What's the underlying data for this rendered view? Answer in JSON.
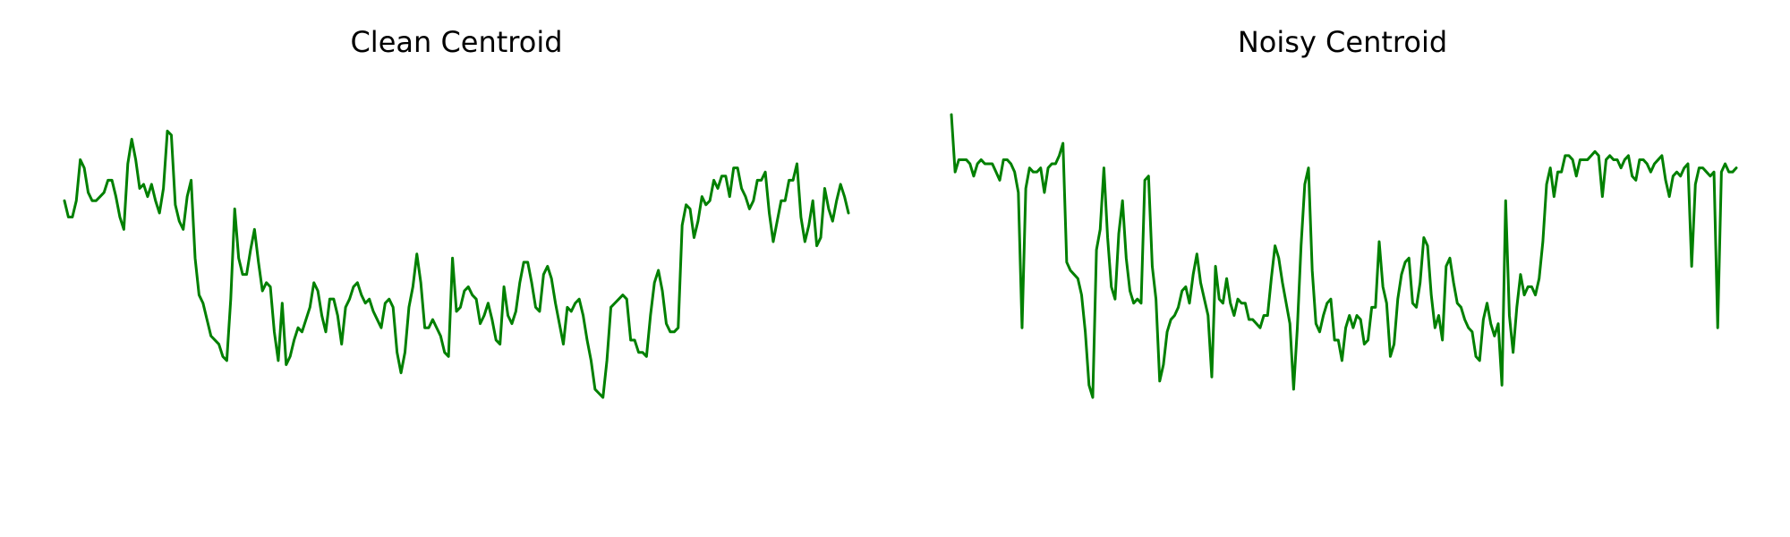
{
  "chart_data": [
    {
      "type": "line",
      "title": "Clean Centroid",
      "xlabel": "",
      "ylabel": "",
      "grid": false,
      "axes_visible": false,
      "color": "#008000",
      "ylim": [
        0,
        1
      ],
      "series": [
        {
          "values": [
            0.72,
            0.68,
            0.68,
            0.72,
            0.82,
            0.8,
            0.74,
            0.72,
            0.72,
            0.73,
            0.74,
            0.77,
            0.77,
            0.73,
            0.68,
            0.65,
            0.81,
            0.87,
            0.82,
            0.75,
            0.76,
            0.73,
            0.76,
            0.72,
            0.69,
            0.75,
            0.89,
            0.88,
            0.71,
            0.67,
            0.65,
            0.73,
            0.77,
            0.58,
            0.49,
            0.47,
            0.43,
            0.39,
            0.38,
            0.37,
            0.34,
            0.33,
            0.48,
            0.7,
            0.58,
            0.54,
            0.54,
            0.6,
            0.65,
            0.57,
            0.5,
            0.52,
            0.51,
            0.4,
            0.33,
            0.47,
            0.32,
            0.34,
            0.38,
            0.41,
            0.4,
            0.43,
            0.46,
            0.52,
            0.5,
            0.44,
            0.4,
            0.48,
            0.48,
            0.44,
            0.37,
            0.46,
            0.48,
            0.51,
            0.52,
            0.49,
            0.47,
            0.48,
            0.45,
            0.43,
            0.41,
            0.47,
            0.48,
            0.46,
            0.35,
            0.3,
            0.35,
            0.46,
            0.51,
            0.59,
            0.52,
            0.41,
            0.41,
            0.43,
            0.41,
            0.39,
            0.35,
            0.34,
            0.58,
            0.45,
            0.46,
            0.5,
            0.51,
            0.49,
            0.48,
            0.42,
            0.44,
            0.47,
            0.43,
            0.38,
            0.37,
            0.51,
            0.44,
            0.42,
            0.45,
            0.52,
            0.57,
            0.57,
            0.52,
            0.46,
            0.45,
            0.54,
            0.56,
            0.53,
            0.47,
            0.42,
            0.37,
            0.46,
            0.45,
            0.47,
            0.48,
            0.44,
            0.38,
            0.33,
            0.26,
            0.25,
            0.24,
            0.33,
            0.46,
            0.47,
            0.48,
            0.49,
            0.48,
            0.38,
            0.38,
            0.35,
            0.35,
            0.34,
            0.44,
            0.52,
            0.55,
            0.5,
            0.42,
            0.4,
            0.4,
            0.41,
            0.66,
            0.71,
            0.7,
            0.63,
            0.67,
            0.73,
            0.71,
            0.72,
            0.77,
            0.75,
            0.78,
            0.78,
            0.73,
            0.8,
            0.8,
            0.75,
            0.73,
            0.7,
            0.72,
            0.77,
            0.77,
            0.79,
            0.69,
            0.62,
            0.67,
            0.72,
            0.72,
            0.77,
            0.77,
            0.81,
            0.68,
            0.62,
            0.66,
            0.72,
            0.61,
            0.63,
            0.75,
            0.7,
            0.67,
            0.72,
            0.76,
            0.73,
            0.69
          ]
        }
      ]
    },
    {
      "type": "line",
      "title": "Noisy Centroid",
      "xlabel": "",
      "ylabel": "",
      "grid": false,
      "axes_visible": false,
      "color": "#008000",
      "ylim": [
        0,
        1
      ],
      "series": [
        {
          "values": [
            0.93,
            0.79,
            0.82,
            0.82,
            0.82,
            0.81,
            0.78,
            0.81,
            0.82,
            0.81,
            0.81,
            0.81,
            0.79,
            0.77,
            0.82,
            0.82,
            0.81,
            0.79,
            0.74,
            0.41,
            0.75,
            0.8,
            0.79,
            0.79,
            0.8,
            0.74,
            0.8,
            0.81,
            0.81,
            0.83,
            0.86,
            0.57,
            0.55,
            0.54,
            0.53,
            0.49,
            0.4,
            0.27,
            0.24,
            0.6,
            0.65,
            0.8,
            0.63,
            0.51,
            0.48,
            0.64,
            0.72,
            0.58,
            0.5,
            0.47,
            0.48,
            0.47,
            0.77,
            0.78,
            0.56,
            0.48,
            0.28,
            0.32,
            0.4,
            0.43,
            0.44,
            0.46,
            0.5,
            0.51,
            0.47,
            0.54,
            0.59,
            0.52,
            0.48,
            0.44,
            0.29,
            0.56,
            0.48,
            0.47,
            0.53,
            0.47,
            0.44,
            0.48,
            0.47,
            0.47,
            0.43,
            0.43,
            0.42,
            0.41,
            0.44,
            0.44,
            0.53,
            0.61,
            0.58,
            0.52,
            0.47,
            0.42,
            0.26,
            0.41,
            0.61,
            0.76,
            0.8,
            0.55,
            0.42,
            0.4,
            0.44,
            0.47,
            0.48,
            0.38,
            0.38,
            0.33,
            0.41,
            0.44,
            0.41,
            0.44,
            0.43,
            0.37,
            0.38,
            0.46,
            0.46,
            0.62,
            0.51,
            0.47,
            0.34,
            0.37,
            0.48,
            0.54,
            0.57,
            0.58,
            0.47,
            0.46,
            0.52,
            0.63,
            0.61,
            0.49,
            0.41,
            0.44,
            0.38,
            0.56,
            0.58,
            0.52,
            0.47,
            0.46,
            0.43,
            0.41,
            0.4,
            0.34,
            0.33,
            0.43,
            0.47,
            0.42,
            0.39,
            0.42,
            0.27,
            0.72,
            0.44,
            0.35,
            0.46,
            0.54,
            0.49,
            0.51,
            0.51,
            0.49,
            0.53,
            0.62,
            0.76,
            0.8,
            0.73,
            0.79,
            0.79,
            0.83,
            0.83,
            0.82,
            0.78,
            0.82,
            0.82,
            0.82,
            0.83,
            0.84,
            0.83,
            0.73,
            0.82,
            0.83,
            0.82,
            0.82,
            0.8,
            0.82,
            0.83,
            0.78,
            0.77,
            0.82,
            0.82,
            0.81,
            0.79,
            0.81,
            0.82,
            0.83,
            0.77,
            0.73,
            0.78,
            0.79,
            0.78,
            0.8,
            0.81,
            0.56,
            0.76,
            0.8,
            0.8,
            0.79,
            0.78,
            0.79,
            0.41,
            0.79,
            0.81,
            0.79,
            0.79,
            0.8
          ]
        }
      ]
    }
  ]
}
